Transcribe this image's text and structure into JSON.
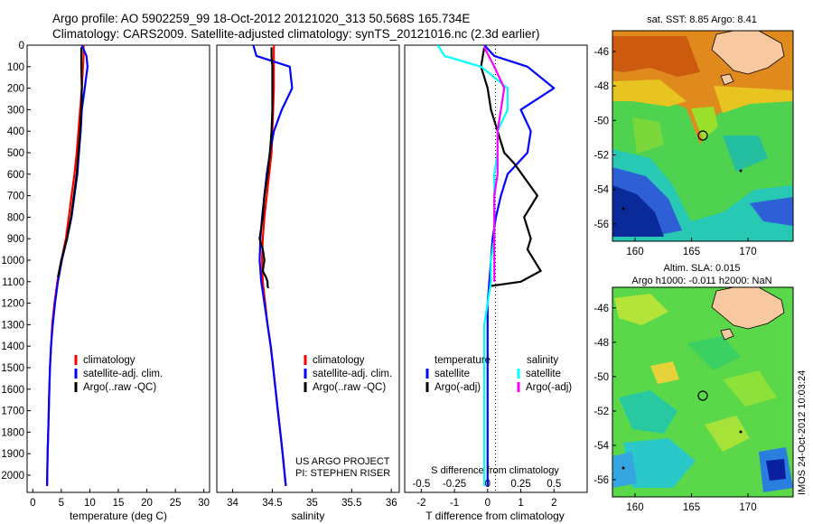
{
  "header": {
    "line1": "Argo profile: AO 5902259_99 18-Oct-2012 20121020_313 50.568S 165.734E",
    "line2": "Climatology: CARS2009. Satellite-adjusted climatology: synTS_20121016.nc (2.3d earlier)"
  },
  "colors": {
    "climatology": "#ff0000",
    "satellite": "#0000ff",
    "argo": "#000000",
    "satellite_salinity": "#00ffff",
    "argo_salinity_adj": "#ff00ff"
  },
  "chart_data": [
    {
      "type": "line",
      "name": "temperature-profile",
      "xlabel": "temperature (deg C)",
      "ylabel": "",
      "xlim": [
        -1,
        31
      ],
      "ylim": [
        2080,
        0
      ],
      "y_reversed": true,
      "xticks": [
        "0",
        "5",
        "10",
        "15",
        "20",
        "25",
        "30"
      ],
      "yticks": [
        "0",
        "100",
        "200",
        "300",
        "400",
        "500",
        "600",
        "700",
        "800",
        "900",
        "1000",
        "1100",
        "1200",
        "1300",
        "1400",
        "1500",
        "1600",
        "1700",
        "1800",
        "1900",
        "2000"
      ],
      "legend": [
        "climatology",
        "satellite-adj. clim.",
        "Argo(..raw -QC)"
      ],
      "legend_position": "lower-center",
      "series": [
        {
          "name": "climatology",
          "color": "#ff0000",
          "x": [
            8.9,
            8.9,
            8.8,
            8.6,
            8.3,
            8.0,
            7.7,
            7.3,
            6.8,
            6.3,
            5.8,
            5.0,
            4.3,
            3.8,
            3.4,
            3.2,
            3.0,
            2.9,
            2.8,
            2.7,
            2.6,
            2.5
          ],
          "y": [
            0,
            50,
            100,
            200,
            300,
            400,
            500,
            600,
            700,
            800,
            900,
            1000,
            1100,
            1200,
            1300,
            1400,
            1500,
            1600,
            1700,
            1800,
            1900,
            2050
          ]
        },
        {
          "name": "satellite-adj. clim.",
          "color": "#0000ff",
          "x": [
            8.6,
            9.4,
            9.6,
            9.1,
            8.6,
            8.4,
            8.1,
            7.8,
            7.3,
            6.8,
            6.0,
            5.1,
            4.4,
            3.9,
            3.5,
            3.2,
            3.0,
            2.9,
            2.8,
            2.7,
            2.6,
            2.5
          ],
          "y": [
            0,
            50,
            100,
            200,
            300,
            400,
            500,
            600,
            700,
            800,
            900,
            1000,
            1100,
            1200,
            1300,
            1400,
            1500,
            1600,
            1700,
            1800,
            1900,
            2050
          ]
        },
        {
          "name": "Argo(..raw -QC)",
          "color": "#000000",
          "x": [
            8.5,
            8.5,
            8.5,
            8.6,
            8.5,
            8.3,
            8.0,
            7.7,
            7.2,
            6.7,
            6.0,
            5.0,
            4.4
          ],
          "y": [
            10,
            50,
            100,
            200,
            300,
            400,
            500,
            600,
            700,
            800,
            900,
            1000,
            1080
          ]
        }
      ]
    },
    {
      "type": "line",
      "name": "salinity-profile",
      "xlabel": "salinity",
      "xlim": [
        33.8,
        36.1
      ],
      "ylim": [
        2080,
        0
      ],
      "y_reversed": true,
      "xticks": [
        "34",
        "34.5",
        "35",
        "35.5",
        "36"
      ],
      "legend": [
        "climatology",
        "satellite-adj. clim.",
        "Argo(..raw -QC)"
      ],
      "legend_position": "lower-center",
      "annotation": [
        "US ARGO PROJECT",
        "PI: STEPHEN RISER"
      ],
      "series": [
        {
          "name": "climatology",
          "color": "#ff0000",
          "x": [
            34.52,
            34.52,
            34.52,
            34.52,
            34.51,
            34.5,
            34.49,
            34.46,
            34.43,
            34.4,
            34.38,
            34.37,
            34.38,
            34.41,
            34.44,
            34.48,
            34.51,
            34.54,
            34.57,
            34.6,
            34.63,
            34.67
          ],
          "y": [
            0,
            50,
            100,
            200,
            300,
            400,
            500,
            600,
            700,
            800,
            900,
            1000,
            1100,
            1200,
            1300,
            1400,
            1500,
            1600,
            1700,
            1800,
            1900,
            2050
          ]
        },
        {
          "name": "satellite-adj. clim.",
          "color": "#0000ff",
          "x": [
            34.26,
            34.3,
            34.72,
            34.75,
            34.62,
            34.52,
            34.47,
            34.43,
            34.4,
            34.37,
            34.35,
            34.34,
            34.36,
            34.4,
            34.44,
            34.48,
            34.51,
            34.54,
            34.57,
            34.6,
            34.63,
            34.67
          ],
          "y": [
            0,
            50,
            100,
            200,
            300,
            400,
            500,
            600,
            700,
            800,
            900,
            1000,
            1100,
            1200,
            1300,
            1400,
            1500,
            1600,
            1700,
            1800,
            1900,
            2050
          ]
        },
        {
          "name": "Argo(..raw -QC)",
          "color": "#000000",
          "x": [
            34.49,
            34.49,
            34.5,
            34.5,
            34.5,
            34.49,
            34.47,
            34.44,
            34.4,
            34.38,
            34.36,
            34.34,
            34.38,
            34.4,
            34.38,
            34.42,
            34.44,
            34.44,
            34.45
          ],
          "y": [
            10,
            50,
            100,
            200,
            300,
            400,
            500,
            600,
            700,
            800,
            850,
            900,
            950,
            1000,
            1050,
            1080,
            1100,
            1120,
            1130
          ]
        }
      ]
    },
    {
      "type": "line",
      "name": "difference-profile",
      "xlabel": "T difference from climatology",
      "xlabel_top": "S difference from climatology",
      "xlim": [
        -2.5,
        3.0
      ],
      "ylim": [
        2080,
        0
      ],
      "y_reversed": true,
      "xticks": [
        "-2",
        "-1",
        "0",
        "1",
        "2"
      ],
      "secondary_xticks": [
        "-0.5",
        "-0.25",
        "0",
        "0.25",
        "0.5"
      ],
      "legend_headers": [
        "temperature",
        "salinity"
      ],
      "legend": [
        "satellite",
        "Argo(-adj)",
        "satellite",
        "Argo(-adj)"
      ],
      "series": [
        {
          "name": "temperature satellite",
          "color": "#0000ff",
          "x": [
            -0.1,
            0.2,
            1.2,
            2.0,
            1.0,
            1.3,
            1.2,
            0.6,
            0.4,
            0.25,
            0.15,
            0.1,
            0.05,
            0.0,
            0.0,
            0.0,
            0.0,
            0.0,
            0.0,
            0.0,
            0.0,
            0.0
          ],
          "y": [
            0,
            50,
            100,
            200,
            300,
            400,
            500,
            600,
            700,
            800,
            900,
            1000,
            1100,
            1200,
            1300,
            1400,
            1500,
            1600,
            1700,
            1800,
            1900,
            2050
          ]
        },
        {
          "name": "temperature Argo(-adj)",
          "color": "#000000",
          "x": [
            -0.1,
            -0.2,
            0.0,
            0.1,
            0.3,
            0.5,
            0.8,
            1.5,
            1.1,
            1.3,
            1.2,
            1.6,
            1.0,
            0.1
          ],
          "y": [
            10,
            100,
            200,
            300,
            400,
            500,
            550,
            700,
            800,
            900,
            950,
            1050,
            1100,
            1120
          ]
        },
        {
          "name": "salinity satellite",
          "color": "#00ffff",
          "x": [
            -1.5,
            -1.3,
            -0.2,
            0.6,
            0.6,
            0.3,
            0.3,
            0.2,
            0.2,
            0.2,
            0.2,
            0.1,
            0.1,
            0.0,
            -0.1,
            -0.1,
            -0.1,
            -0.1,
            -0.1,
            -0.1,
            -0.1,
            -0.1
          ],
          "y": [
            0,
            50,
            100,
            200,
            300,
            400,
            500,
            600,
            700,
            800,
            900,
            1000,
            1100,
            1200,
            1300,
            1400,
            1500,
            1600,
            1700,
            1800,
            1900,
            2050
          ]
        },
        {
          "name": "salinity Argo(-adj)",
          "color": "#ff00ff",
          "x": [
            -0.1,
            0.2,
            0.5,
            0.4,
            0.3,
            0.3,
            0.3,
            0.2,
            0.2,
            0.2,
            0.2,
            0.2
          ],
          "y": [
            10,
            100,
            200,
            300,
            400,
            500,
            600,
            700,
            800,
            900,
            1000,
            1100
          ]
        }
      ]
    },
    {
      "type": "heatmap",
      "name": "sst-map",
      "title": "sat. SST: 8.85  Argo: 8.41",
      "xticks": [
        "160",
        "165",
        "170"
      ],
      "yticks": [
        "-46",
        "-48",
        "-50",
        "-52",
        "-54",
        "-56"
      ],
      "xlim": [
        158,
        174
      ],
      "ylim": [
        -57,
        -44.8
      ],
      "marker": {
        "lon": 165.734,
        "lat": -50.568
      }
    },
    {
      "type": "heatmap",
      "name": "sla-map",
      "title": "Altim. SLA: 0.015",
      "subtitle": "Argo h1000: -0.011  h2000: NaN",
      "xticks": [
        "160",
        "165",
        "170"
      ],
      "yticks": [
        "-46",
        "-48",
        "-50",
        "-52",
        "-54",
        "-56"
      ],
      "xlim": [
        158,
        174
      ],
      "ylim": [
        -57,
        -44.8
      ],
      "marker": {
        "lon": 165.734,
        "lat": -50.568
      }
    }
  ],
  "watermark": "IMOS 24-Oct-2012 10:03:24"
}
